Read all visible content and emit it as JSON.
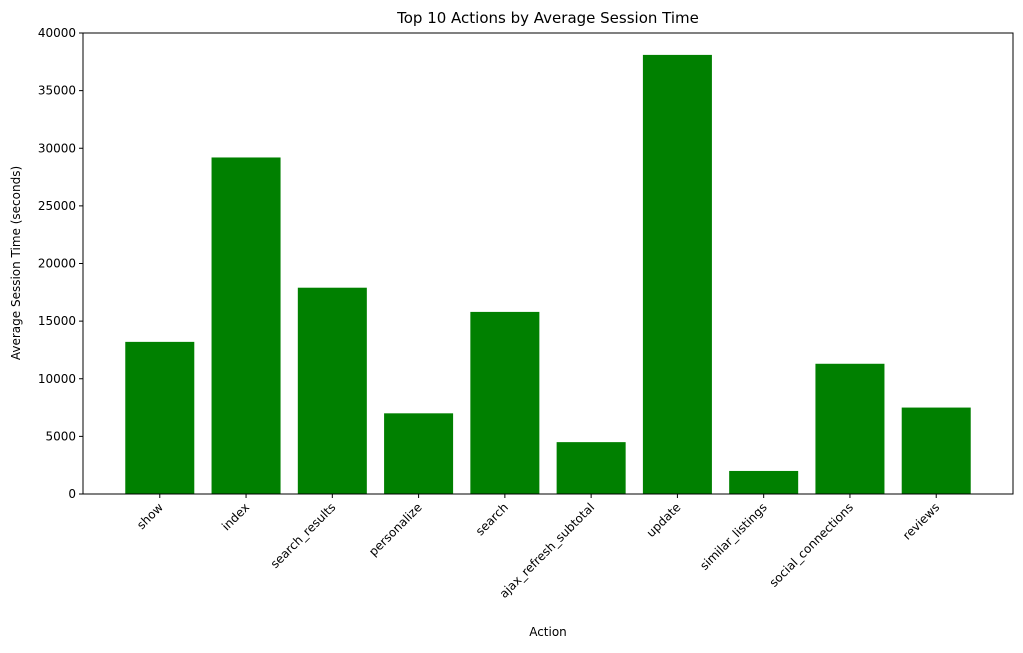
{
  "chart_data": {
    "type": "bar",
    "title": "Top 10 Actions by Average Session Time",
    "xlabel": "Action",
    "ylabel": "Average Session Time (seconds)",
    "categories": [
      "show",
      "index",
      "search_results",
      "personalize",
      "search",
      "ajax_refresh_subtotal",
      "update",
      "similar_listings",
      "social_connections",
      "reviews"
    ],
    "values": [
      13200,
      29200,
      17900,
      7000,
      15800,
      4500,
      38100,
      2000,
      11300,
      7500
    ],
    "ylim": [
      0,
      40000
    ],
    "yticks": [
      0,
      5000,
      10000,
      15000,
      20000,
      25000,
      30000,
      35000,
      40000
    ],
    "grid": false,
    "legend": "none",
    "colors": {
      "bar": "#008000",
      "axis": "#000000",
      "background": "#ffffff"
    }
  }
}
